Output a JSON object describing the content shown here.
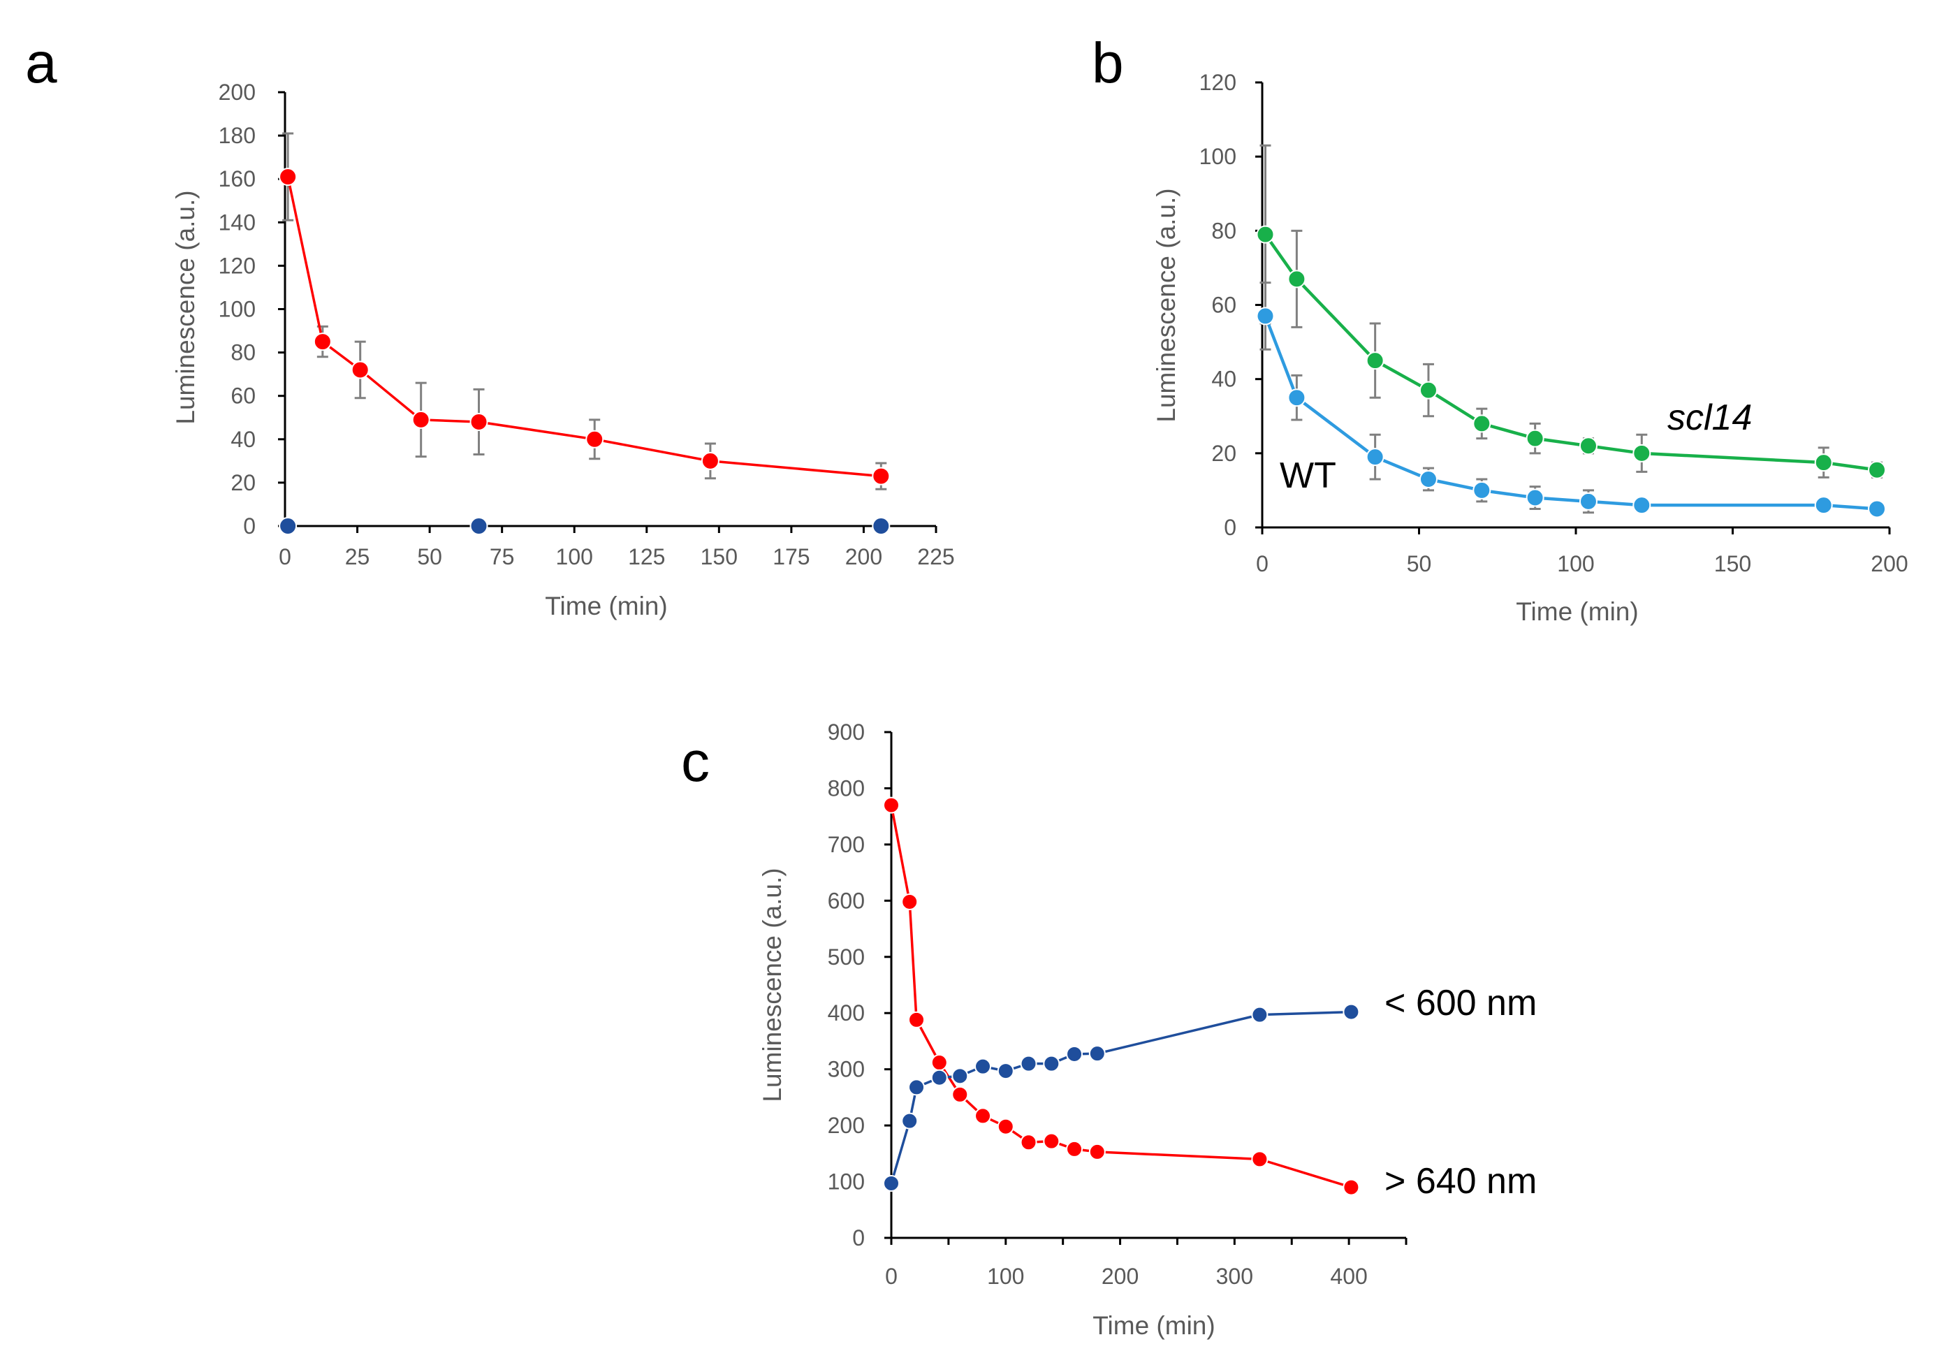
{
  "colors": {
    "axis": "#000000",
    "tick_text": "#595959",
    "error_bar": "#808080",
    "red": "#ff0000",
    "dark_blue": "#1f4e9c",
    "light_blue": "#2e9be0",
    "green": "#18b04a"
  },
  "chart_data": [
    {
      "panel_label": "a",
      "type": "line",
      "xlabel": "Time  (min)",
      "ylabel": "Luminescence  (a.u.)",
      "xlim": [
        0,
        225
      ],
      "ylim": [
        0,
        200
      ],
      "xticks": [
        0,
        25,
        50,
        75,
        100,
        125,
        150,
        175,
        200,
        225
      ],
      "yticks": [
        0,
        20,
        40,
        60,
        80,
        100,
        120,
        140,
        160,
        180,
        200
      ],
      "grid": false,
      "series": [
        {
          "color": "#ff0000",
          "line": true,
          "x": [
            1,
            13,
            26,
            47,
            67,
            107,
            147,
            206
          ],
          "y": [
            161,
            85,
            72,
            49,
            48,
            40,
            30,
            23
          ],
          "err": [
            20,
            7,
            13,
            17,
            15,
            9,
            8,
            6
          ]
        },
        {
          "color": "#1f4e9c",
          "line": false,
          "x": [
            1,
            67,
            206
          ],
          "y": [
            0,
            0,
            0
          ],
          "err": [
            0,
            0,
            0
          ]
        }
      ],
      "annotations": []
    },
    {
      "panel_label": "b",
      "type": "line",
      "xlabel": "Time  (min)",
      "ylabel": "Luminescence  (a.u.)",
      "xlim": [
        0,
        200
      ],
      "ylim": [
        0,
        120
      ],
      "xticks": [
        0,
        50,
        100,
        150,
        200
      ],
      "yticks": [
        0,
        20,
        40,
        60,
        80,
        100,
        120
      ],
      "grid": false,
      "series": [
        {
          "name": "scl14",
          "color": "#18b04a",
          "line": true,
          "x": [
            1,
            11,
            36,
            53,
            70,
            87,
            104,
            121,
            179,
            196
          ],
          "y": [
            79,
            67,
            45,
            37,
            28,
            24,
            22,
            20,
            17.5,
            15.5
          ],
          "err": [
            24,
            13,
            10,
            7,
            4,
            4,
            2,
            5,
            4,
            2
          ]
        },
        {
          "name": "WT",
          "color": "#2e9be0",
          "line": true,
          "x": [
            1,
            11,
            36,
            53,
            70,
            87,
            104,
            121,
            179,
            196
          ],
          "y": [
            57,
            35,
            19,
            13,
            10,
            8,
            7,
            6,
            6,
            5
          ],
          "err": [
            9,
            6,
            6,
            3,
            3,
            3,
            3,
            1.5,
            1.5,
            1.5
          ]
        }
      ],
      "annotations": [
        {
          "text": "scl14",
          "italic": true,
          "at": [
            125,
            28
          ]
        },
        {
          "text": "WT",
          "italic": false,
          "at": [
            5,
            11
          ]
        }
      ]
    },
    {
      "panel_label": "c",
      "type": "line",
      "xlabel": "Time  (min)",
      "ylabel": "Luminescence  (a.u.)",
      "xlim": [
        0,
        450
      ],
      "ylim": [
        0,
        900
      ],
      "xticks": [
        0,
        100,
        200,
        300,
        400
      ],
      "xticks_minor": [
        50,
        150,
        250,
        350,
        450
      ],
      "yticks": [
        0,
        100,
        200,
        300,
        400,
        500,
        600,
        700,
        800,
        900
      ],
      "grid": false,
      "series": [
        {
          "name": "> 640 nm",
          "color": "#ff0000",
          "line": true,
          "x": [
            0,
            16,
            22,
            42,
            60,
            80,
            100,
            120,
            140,
            160,
            180,
            322,
            402
          ],
          "y": [
            770,
            598,
            388,
            312,
            255,
            217,
            198,
            170,
            172,
            158,
            153,
            140,
            90
          ],
          "err": []
        },
        {
          "name": "< 600 nm",
          "color": "#1f4e9c",
          "line": true,
          "x": [
            0,
            16,
            22,
            42,
            60,
            80,
            100,
            120,
            140,
            160,
            180,
            322,
            402
          ],
          "y": [
            97,
            208,
            268,
            285,
            288,
            305,
            297,
            310,
            310,
            327,
            328,
            397,
            402
          ],
          "err": []
        }
      ],
      "annotations": [
        {
          "text": "< 600 nm",
          "italic": false,
          "at": [
            420,
            402
          ]
        },
        {
          "text": "> 640 nm",
          "italic": false,
          "at": [
            420,
            90
          ]
        }
      ]
    }
  ]
}
